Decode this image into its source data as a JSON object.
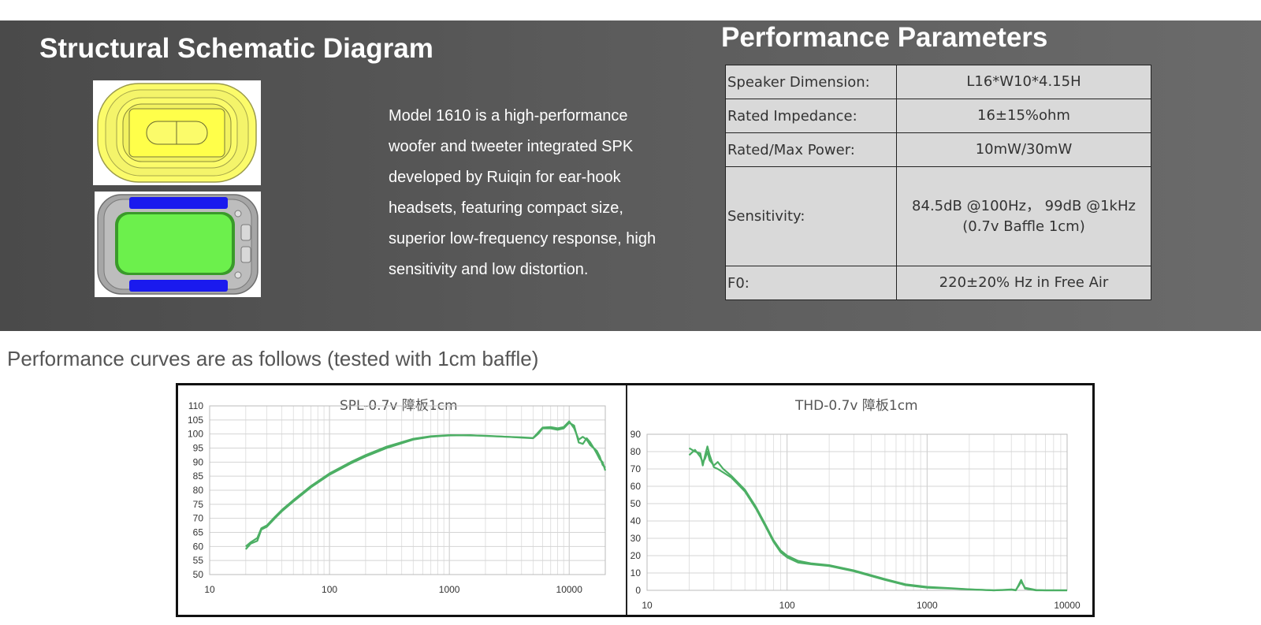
{
  "left_heading": "Structural Schematic Diagram",
  "right_heading": "Performance Parameters",
  "description": [
    "Model 1610 is a high-performance",
    "woofer and tweeter integrated SPK",
    "developed by Ruiqin for ear-hook",
    "headsets, featuring compact size,",
    "superior low-frequency response, high",
    "sensitivity and low distortion."
  ],
  "params": [
    {
      "key": "Speaker Dimension:",
      "value": "L16*W10*4.15H"
    },
    {
      "key": "Rated Impedance:",
      "value": "16±15%ohm"
    },
    {
      "key": "Rated/Max Power:",
      "value": "10mW/30mW"
    },
    {
      "key": "Sensitivity:",
      "value": "84.5dB @100Hz，  99dB @1kHz",
      "value2": "(0.7v Baffle 1cm)"
    },
    {
      "key": "F0:",
      "value": "220±20% Hz  in Free Air"
    }
  ],
  "subtitle": "Performance curves are as follows (tested with 1cm baffle)",
  "colors": {
    "line": "#4caf64",
    "yellow": "#fbfb6a",
    "green": "#6cf04c",
    "blue": "#1a1aee",
    "grey": "#9a9a9a"
  },
  "chart_data": [
    {
      "type": "line",
      "title": "SPL-0.7v 障板1cm",
      "x_scale": "log",
      "xlim": [
        10,
        20000
      ],
      "ylim": [
        50,
        110
      ],
      "xticks": [
        "10",
        "100",
        "1000",
        "10000"
      ],
      "yticks": [
        "110",
        "105",
        "100",
        "95",
        "90",
        "85",
        "80",
        "75",
        "70",
        "65",
        "60",
        "55",
        "50"
      ],
      "grid": true,
      "series": [
        {
          "x": [
            20,
            22,
            25,
            27,
            30,
            35,
            40,
            50,
            70,
            100,
            150,
            200,
            300,
            500,
            700,
            1000,
            1500,
            2000,
            3000,
            4000,
            5000,
            5500,
            6000,
            7000,
            8000,
            9000,
            10000,
            11000,
            12000,
            13000,
            14000,
            15000,
            16000,
            17000,
            18000,
            19000,
            20000
          ],
          "y": [
            59,
            61,
            62,
            66,
            67,
            70,
            72.5,
            76,
            81,
            85.5,
            89.5,
            92,
            95,
            98,
            99,
            99.5,
            99.6,
            99.3,
            99,
            98.7,
            98.5,
            100,
            102,
            102,
            101.5,
            102,
            104,
            103,
            97,
            96.5,
            98.5,
            97,
            95,
            93,
            91,
            90,
            87
          ]
        },
        {
          "x": [
            20,
            22,
            25,
            27,
            30,
            35,
            40,
            50,
            70,
            100,
            150,
            200,
            300,
            500,
            700,
            1000,
            1500,
            2000,
            3000,
            4000,
            5000,
            5500,
            6000,
            7000,
            8000,
            9000,
            10000,
            11000,
            12000,
            13000,
            14000,
            15000,
            16000,
            17000,
            18000,
            19000,
            20000
          ],
          "y": [
            60,
            61.5,
            63,
            66.5,
            67.5,
            70.5,
            73,
            76.5,
            81.5,
            86,
            90,
            92.5,
            95.5,
            98.3,
            99.2,
            99.6,
            99.5,
            99.4,
            99,
            98.8,
            98.6,
            100.5,
            102.3,
            102.5,
            102,
            102.5,
            104.5,
            102,
            98,
            99,
            98,
            96,
            95,
            94,
            92,
            89,
            88
          ]
        }
      ]
    },
    {
      "type": "line",
      "title": "THD-0.7v 障板1cm",
      "x_scale": "log",
      "xlim": [
        10,
        10000
      ],
      "ylim": [
        0,
        90
      ],
      "xticks": [
        "10",
        "100",
        "1000",
        "10000"
      ],
      "yticks": [
        "90",
        "80",
        "70",
        "60",
        "50",
        "40",
        "30",
        "20",
        "10",
        "0"
      ],
      "grid": true,
      "series": [
        {
          "x": [
            20,
            22,
            24,
            25,
            26,
            27,
            28,
            30,
            32,
            35,
            40,
            50,
            60,
            70,
            80,
            90,
            100,
            120,
            150,
            200,
            300,
            500,
            700,
            1000,
            1500,
            2000,
            3000,
            4000,
            4300,
            4500,
            4700,
            5000,
            6000,
            7000,
            10000
          ],
          "y": [
            82,
            80,
            79,
            72,
            78,
            83,
            78,
            71,
            70,
            68,
            65,
            57,
            47,
            37,
            28,
            22,
            19,
            16,
            15,
            14,
            11,
            6,
            3,
            1.5,
            1,
            0.5,
            0,
            0.3,
            0,
            3,
            6,
            1,
            0,
            0,
            0
          ]
        },
        {
          "x": [
            20,
            22,
            24,
            25,
            26,
            27,
            28,
            30,
            32,
            35,
            40,
            50,
            60,
            70,
            80,
            90,
            100,
            120,
            150,
            200,
            300,
            500,
            700,
            1000,
            1500,
            2000,
            3000,
            4000,
            4300,
            4500,
            4700,
            5000,
            6000,
            7000,
            10000
          ],
          "y": [
            78,
            81,
            77,
            74,
            76,
            80,
            75,
            72,
            74,
            70,
            66,
            58,
            48,
            38,
            29,
            23,
            20,
            17,
            15.5,
            14.5,
            11.5,
            6.5,
            3.5,
            2,
            1.2,
            0.6,
            0,
            0.5,
            0.2,
            2.5,
            5,
            1.5,
            0.2,
            0,
            0
          ]
        }
      ]
    }
  ]
}
